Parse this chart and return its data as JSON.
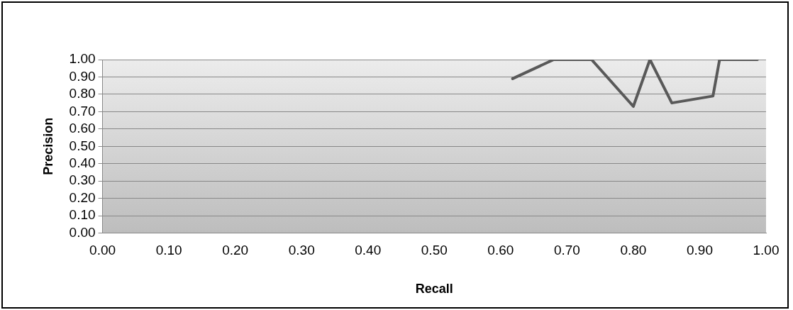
{
  "chart_data": {
    "type": "line",
    "xlabel": "Recall",
    "ylabel": "Precision",
    "x": [
      0.618,
      0.68,
      0.737,
      0.8,
      0.825,
      0.858,
      0.92,
      0.93,
      0.987
    ],
    "series": [
      {
        "color": "#595959",
        "values": [
          0.89,
          1.0,
          1.0,
          0.73,
          1.0,
          0.75,
          0.79,
          1.0,
          1.0
        ]
      }
    ],
    "xlim": [
      0,
      1
    ],
    "xticks": [
      {
        "value": 0,
        "label": "0.00"
      },
      {
        "value": 0.1,
        "label": "0.10"
      },
      {
        "value": 0.2,
        "label": "0.20"
      },
      {
        "value": 0.3,
        "label": "0.30"
      },
      {
        "value": 0.4,
        "label": "0.40"
      },
      {
        "value": 0.5,
        "label": "0.50"
      },
      {
        "value": 0.6,
        "label": "0.60"
      },
      {
        "value": 0.7,
        "label": "0.70"
      },
      {
        "value": 0.8,
        "label": "0.80"
      },
      {
        "value": 0.9,
        "label": "0.90"
      },
      {
        "value": 1,
        "label": "1.00"
      }
    ],
    "ylim": [
      0,
      1
    ],
    "yticks": [
      {
        "value": 0,
        "label": "0.00"
      },
      {
        "value": 0.1,
        "label": "0.10"
      },
      {
        "value": 0.2,
        "label": "0.20"
      },
      {
        "value": 0.3,
        "label": "0.30"
      },
      {
        "value": 0.4,
        "label": "0.40"
      },
      {
        "value": 0.5,
        "label": "0.50"
      },
      {
        "value": 0.6,
        "label": "0.60"
      },
      {
        "value": 0.7,
        "label": "0.70"
      },
      {
        "value": 0.8,
        "label": "0.80"
      },
      {
        "value": 0.9,
        "label": "0.90"
      },
      {
        "value": 1,
        "label": "1.00"
      }
    ],
    "grid": "y",
    "legend": false,
    "marker": "none",
    "line_style": "solid"
  }
}
